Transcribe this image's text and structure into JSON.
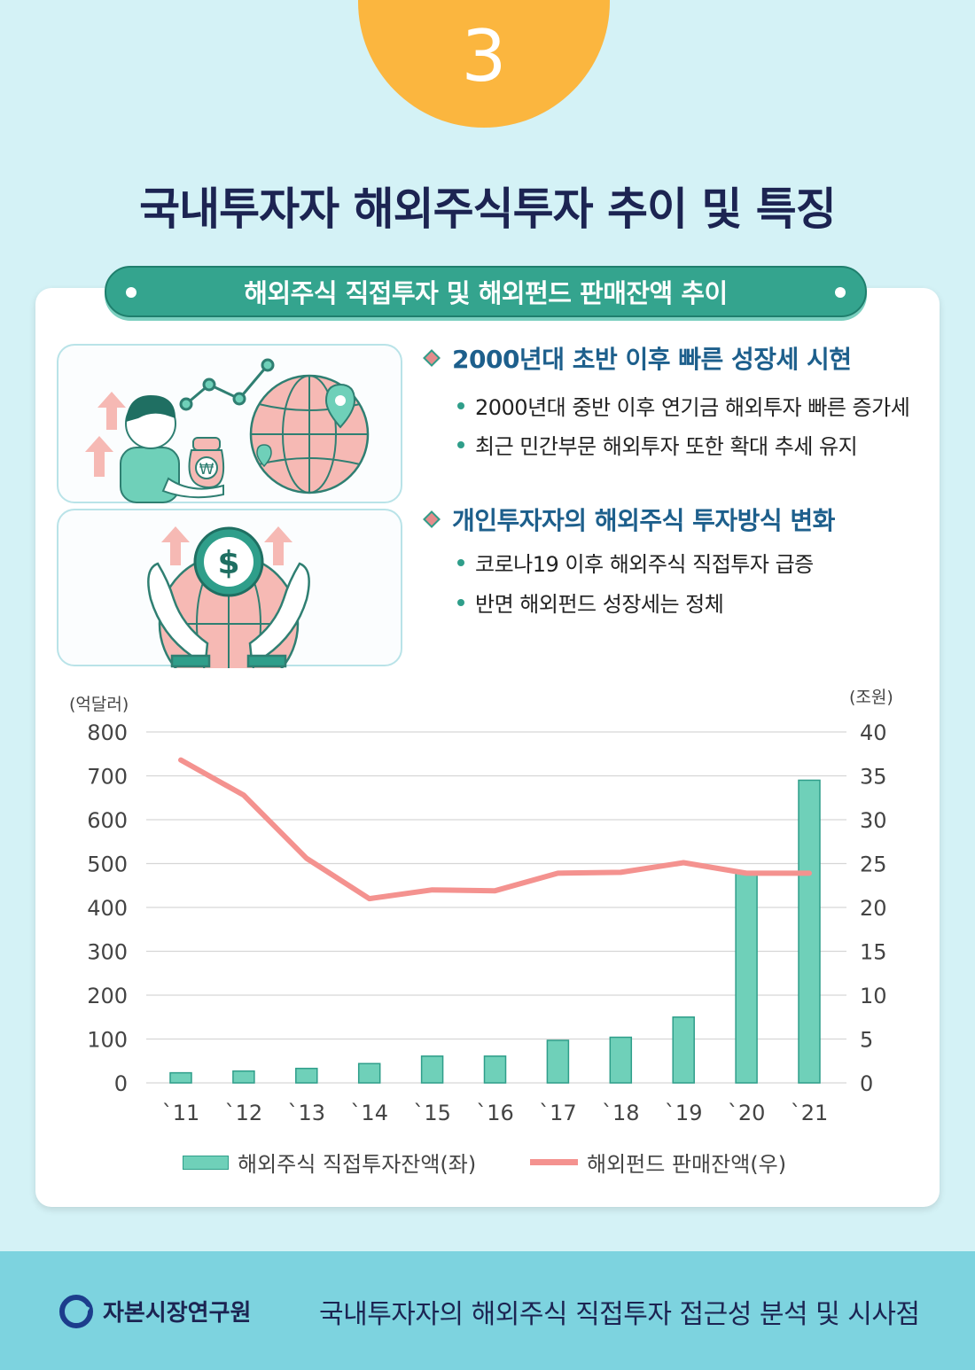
{
  "badge_number": "3",
  "page_title": "국내투자자 해외주식투자 추이 및 특징",
  "banner_title": "해외주식 직접투자 및 해외펀드 판매잔액 추이",
  "sections": [
    {
      "title": "2000년대 초반 이후 빠른 성장세 시현",
      "bullets": [
        "2000년대 중반 이후 연기금 해외투자 빠른 증가세",
        "최근 민간부문 해외투자 또한 확대 추세 유지"
      ]
    },
    {
      "title": "개인투자자의 해외주식 투자방식 변화",
      "bullets": [
        "코로나19 이후 해외주식 직접투자 급증",
        "반면 해외펀드 성장세는 정체"
      ]
    }
  ],
  "icons": {
    "won_bag": "₩",
    "dollar_coin": "$"
  },
  "colors": {
    "bar": "#6fd0b9",
    "bar_stroke": "#2f9e8a",
    "line": "#f4928f",
    "accent": "#34a48e",
    "badge": "#fbb63f"
  },
  "chart_data": {
    "type": "bar+line",
    "categories": [
      "`11",
      "`12",
      "`13",
      "`14",
      "`15",
      "`16",
      "`17",
      "`18",
      "`19",
      "`20",
      "`21"
    ],
    "y_left_unit": "(억달러)",
    "y_right_unit": "(조원)",
    "y_left_ticks": [
      "0",
      "100",
      "200",
      "300",
      "400",
      "500",
      "600",
      "700",
      "800"
    ],
    "y_right_ticks": [
      "0",
      "5",
      "10",
      "15",
      "20",
      "25",
      "30",
      "35",
      "40"
    ],
    "ylim_left": [
      0,
      800
    ],
    "ylim_right": [
      0,
      40
    ],
    "grid": true,
    "legend_position": "bottom",
    "series": [
      {
        "name": "해외주식 직접투자잔액(좌)",
        "type": "bar",
        "axis": "left",
        "values": [
          23,
          27,
          33,
          44,
          61,
          61,
          97,
          104,
          150,
          480,
          690
        ]
      },
      {
        "name": "해외펀드 판매잔액(우)",
        "type": "line",
        "axis": "right",
        "values": [
          36.8,
          32.8,
          25.6,
          21.0,
          22.0,
          21.9,
          23.9,
          24.0,
          25.1,
          23.9,
          23.9
        ]
      }
    ]
  },
  "footer": {
    "org": "자본시장연구원",
    "report": "국내투자자의 해외주식 직접투자 접근성 분석 및 시사점"
  }
}
